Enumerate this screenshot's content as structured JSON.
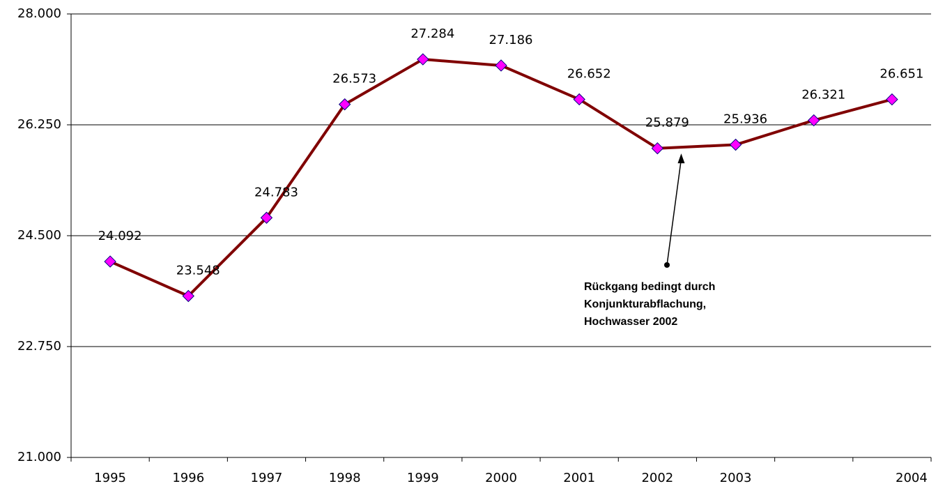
{
  "chart_data": {
    "type": "line",
    "categories": [
      "1995",
      "1996",
      "1997",
      "1998",
      "1999",
      "2000",
      "2001",
      "2002",
      "2003",
      null,
      "2004"
    ],
    "series": [
      {
        "color": "#800000",
        "marker_color": "#ff00ff",
        "values": [
          24092,
          23548,
          24783,
          26573,
          27284,
          27186,
          26652,
          25879,
          25936,
          26321,
          26651
        ],
        "value_labels": [
          "24.092",
          "23.548",
          "24.783",
          "26.573",
          "27.284",
          "27.186",
          "26.652",
          "25.879",
          "25.936",
          "26.321",
          "26.651"
        ]
      }
    ],
    "ylim": [
      21000,
      28000
    ],
    "yticks": [
      {
        "value": 21000,
        "label": "21.000"
      },
      {
        "value": 22750,
        "label": "22.750"
      },
      {
        "value": 24500,
        "label": "24.500"
      },
      {
        "value": 26250,
        "label": "26.250"
      },
      {
        "value": 28000,
        "label": "28.000"
      }
    ],
    "grid": true,
    "annotation": {
      "lines": [
        "Rückgang bedingt durch",
        "Konjunkturabflachung,",
        "Hochwasser 2002"
      ],
      "target_index": 7
    }
  }
}
